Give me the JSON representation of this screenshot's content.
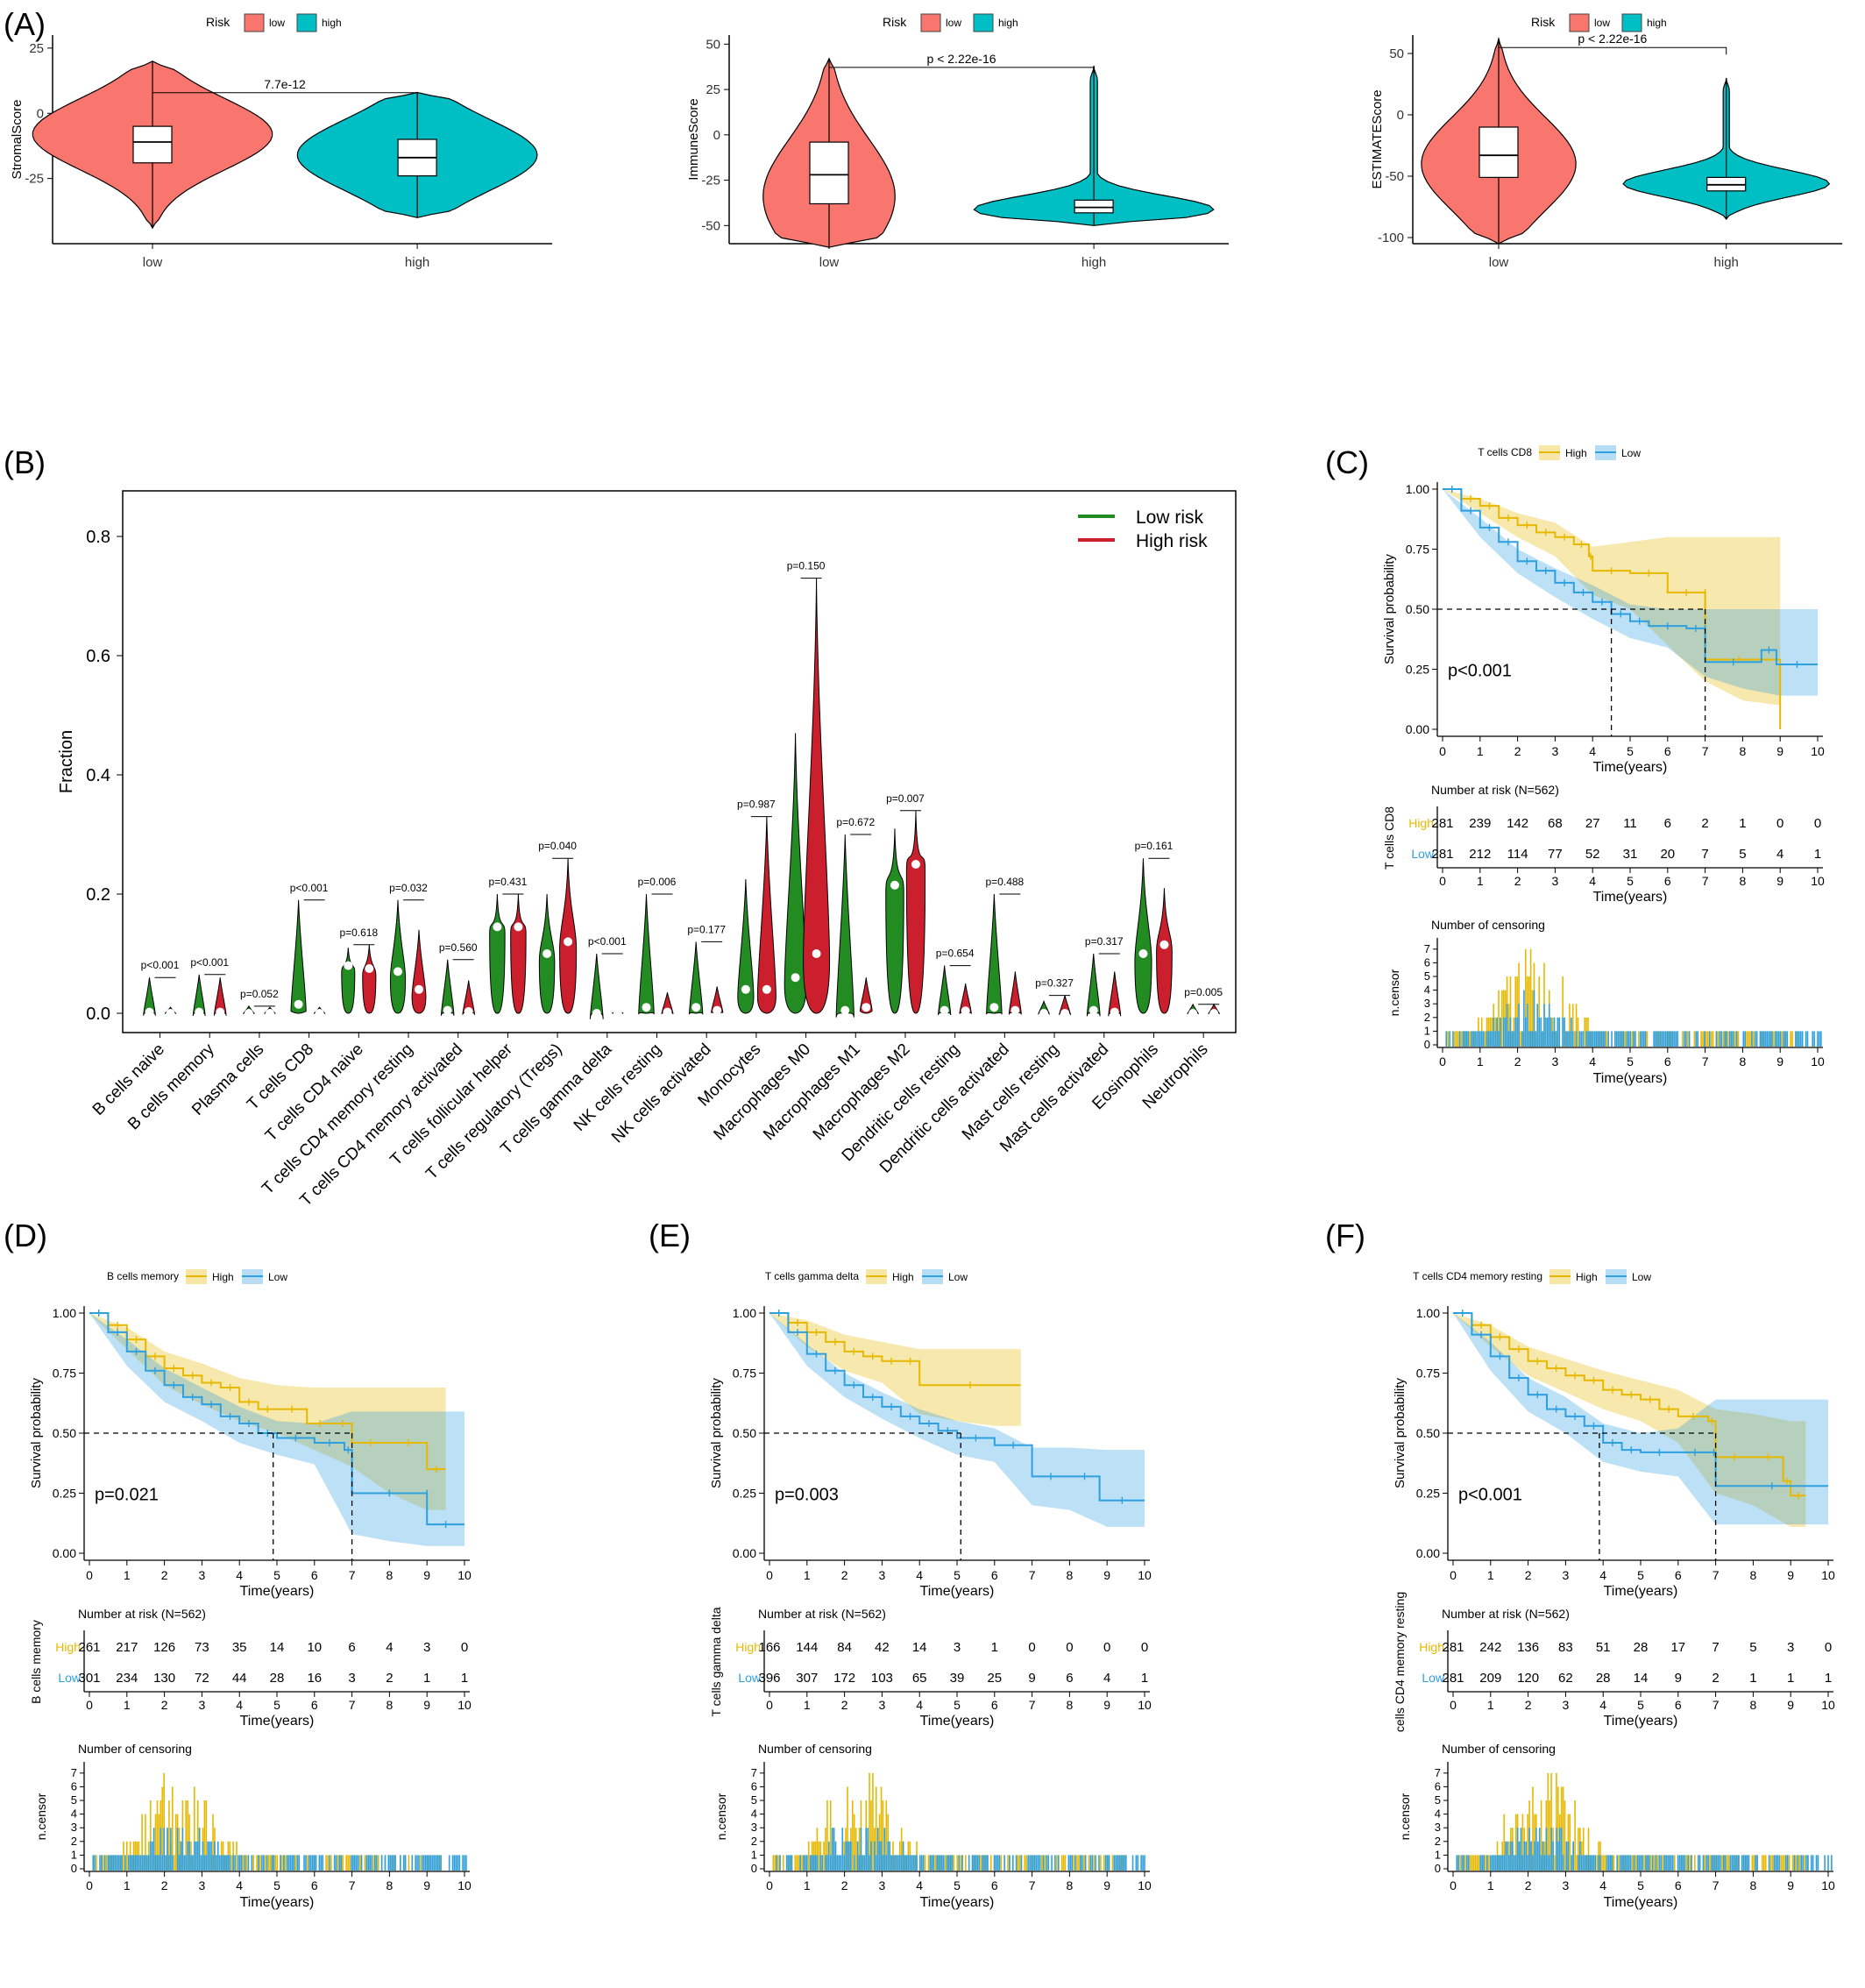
{
  "colors": {
    "low_violin": "#F8766D",
    "high_violin": "#00BFC4",
    "green": "#228B22",
    "red": "#CC1F2D",
    "ks_high": "#E7B800",
    "ks_low": "#2E9FDF"
  },
  "panelA": {
    "label": "(A)",
    "legend_title": "Risk",
    "legend_low": "low",
    "legend_high": "high",
    "charts": [
      {
        "type": "violin",
        "ylabel": "StromalScore",
        "categories": [
          "low",
          "high"
        ],
        "ylim": [
          -50,
          30
        ],
        "yticks": [
          25,
          0,
          -25
        ],
        "pvalue": "7.7e-12",
        "groups": [
          {
            "name": "low",
            "min": -44,
            "q1": -19,
            "median": -11,
            "q3": -5,
            "max": 20,
            "mode": -8,
            "maxdens": 1
          },
          {
            "name": "high",
            "min": -40,
            "q1": -24,
            "median": -17,
            "q3": -10,
            "max": 8,
            "mode": -16,
            "maxdens": 1
          }
        ]
      },
      {
        "type": "violin",
        "ylabel": "ImmuneScore",
        "categories": [
          "low",
          "high"
        ],
        "ylim": [
          -60,
          55
        ],
        "yticks": [
          50,
          25,
          0,
          -25,
          -50
        ],
        "pvalue": "p < 2.22e-16",
        "groups": [
          {
            "name": "low",
            "min": -62,
            "q1": -38,
            "median": -22,
            "q3": -4,
            "max": 42,
            "mode": -34,
            "maxdens": 0.55
          },
          {
            "name": "high",
            "min": -50,
            "q1": -43,
            "median": -40,
            "q3": -36,
            "max": 38,
            "mode": -41,
            "maxdens": 1
          }
        ]
      },
      {
        "type": "violin",
        "ylabel": "ESTIMATEScore",
        "categories": [
          "low",
          "high"
        ],
        "ylim": [
          -105,
          65
        ],
        "yticks": [
          50,
          0,
          -50,
          -100
        ],
        "pvalue": "p < 2.22e-16",
        "groups": [
          {
            "name": "low",
            "min": -105,
            "q1": -51,
            "median": -33,
            "q3": -10,
            "max": 62,
            "mode": -40,
            "maxdens": 0.75
          },
          {
            "name": "high",
            "min": -85,
            "q1": -62,
            "median": -57,
            "q3": -51,
            "max": 30,
            "mode": -56,
            "maxdens": 1
          }
        ]
      }
    ]
  },
  "panelB": {
    "label": "(B)",
    "chart_data": {
      "type": "violin",
      "ylabel": "Fraction",
      "ylim": [
        0,
        0.85
      ],
      "yticks": [
        0.0,
        0.2,
        0.4,
        0.6,
        0.8
      ],
      "legend": [
        "Low risk",
        "High risk"
      ],
      "categories": [
        "B cells naive",
        "B cells memory",
        "Plasma cells",
        "T cells CD8",
        "T cells CD4 naive",
        "T cells CD4 memory resting",
        "T cells CD4 memory activated",
        "T cells follicular helper",
        "T cells regulatory (Tregs)",
        "T cells gamma delta",
        "NK cells resting",
        "NK cells activated",
        "Monocytes",
        "Macrophages M0",
        "Macrophages M1",
        "Macrophages M2",
        "Dendritic cells resting",
        "Dendritic cells activated",
        "Mast cells resting",
        "Mast cells activated",
        "Eosinophils",
        "Neutrophils"
      ],
      "pvalues": [
        "p<0.001",
        "p<0.001",
        "p=0.052",
        "p<0.001",
        "p=0.618",
        "p=0.032",
        "p=0.560",
        "p=0.431",
        "p=0.040",
        "p<0.001",
        "p=0.006",
        "p=0.177",
        "p=0.987",
        "p=0.150",
        "p=0.672",
        "p=0.007",
        "p=0.654",
        "p=0.488",
        "p=0.327",
        "p=0.317",
        "p=0.161",
        "p=0.005"
      ],
      "low_max": [
        0.06,
        0.065,
        0.012,
        0.19,
        0.11,
        0.19,
        0.09,
        0.2,
        0.2,
        0.1,
        0.2,
        0.12,
        0.225,
        0.47,
        0.3,
        0.31,
        0.08,
        0.2,
        0.02,
        0.1,
        0.26,
        0.015
      ],
      "low_median": [
        0.002,
        0.002,
        0.0,
        0.015,
        0.08,
        0.07,
        0.005,
        0.145,
        0.1,
        0.0,
        0.01,
        0.01,
        0.04,
        0.06,
        0.005,
        0.215,
        0.005,
        0.01,
        0.0,
        0.005,
        0.1,
        0.0
      ],
      "high_max": [
        0.01,
        0.06,
        0.01,
        0.01,
        0.115,
        0.14,
        0.055,
        0.2,
        0.26,
        0.005,
        0.035,
        0.045,
        0.33,
        0.73,
        0.06,
        0.34,
        0.05,
        0.07,
        0.03,
        0.07,
        0.21,
        0.015
      ],
      "high_median": [
        0.0,
        0.002,
        0.0,
        0.0,
        0.075,
        0.04,
        0.003,
        0.145,
        0.12,
        0.0,
        0.002,
        0.005,
        0.04,
        0.1,
        0.01,
        0.25,
        0.004,
        0.005,
        0.0,
        0.002,
        0.115,
        0.0
      ]
    }
  },
  "km_common": {
    "ylabel": "Survival probability",
    "xlabel": "Time(years)",
    "legend_high": "High",
    "legend_low": "Low",
    "risk_title": "Number at risk (N=562)",
    "censor_title": "Number of censoring",
    "censor_ylabel": "n.censor",
    "xticks": [
      0,
      1,
      2,
      3,
      4,
      5,
      6,
      7,
      8,
      9,
      10
    ],
    "yticks": [
      "1.00",
      "0.75",
      "0.50",
      "0.25",
      "0.00"
    ]
  },
  "panelC": {
    "label": "(C)",
    "strata": "T cells CD8",
    "pvalue": "p<0.001",
    "risk_high": [
      281,
      239,
      142,
      68,
      27,
      11,
      6,
      2,
      1,
      0,
      0
    ],
    "risk_low": [
      281,
      212,
      114,
      77,
      52,
      31,
      20,
      7,
      5,
      4,
      1
    ],
    "high_steps": [
      [
        0,
        1
      ],
      [
        0.5,
        0.96
      ],
      [
        1,
        0.93
      ],
      [
        1.5,
        0.88
      ],
      [
        2,
        0.85
      ],
      [
        2.5,
        0.82
      ],
      [
        3,
        0.8
      ],
      [
        3.5,
        0.77
      ],
      [
        3.9,
        0.72
      ],
      [
        4,
        0.66
      ],
      [
        5,
        0.65
      ],
      [
        6,
        0.57
      ],
      [
        7,
        0.57
      ],
      [
        7,
        0.29
      ],
      [
        8.8,
        0.29
      ],
      [
        9,
        0
      ]
    ],
    "low_steps": [
      [
        0,
        1
      ],
      [
        0.5,
        0.91
      ],
      [
        1,
        0.84
      ],
      [
        1.5,
        0.78
      ],
      [
        2,
        0.7
      ],
      [
        2.5,
        0.66
      ],
      [
        3,
        0.61
      ],
      [
        3.5,
        0.57
      ],
      [
        4,
        0.53
      ],
      [
        4.5,
        0.48
      ],
      [
        5,
        0.45
      ],
      [
        5.5,
        0.43
      ],
      [
        6.5,
        0.42
      ],
      [
        7,
        0.42
      ],
      [
        7,
        0.28
      ],
      [
        8.5,
        0.33
      ],
      [
        8.9,
        0.27
      ],
      [
        10,
        0.27
      ]
    ],
    "high_ci": [
      [
        0,
        1,
        1
      ],
      [
        1,
        0.96,
        0.9
      ],
      [
        2,
        0.9,
        0.8
      ],
      [
        3,
        0.86,
        0.72
      ],
      [
        4,
        0.76,
        0.56
      ],
      [
        5,
        0.78,
        0.5
      ],
      [
        6,
        0.8,
        0.35
      ],
      [
        7,
        0.8,
        0.2
      ],
      [
        8,
        0.8,
        0.12
      ],
      [
        9,
        0.8,
        0.1
      ]
    ],
    "low_ci": [
      [
        0,
        1,
        1
      ],
      [
        1,
        0.88,
        0.8
      ],
      [
        2,
        0.75,
        0.65
      ],
      [
        3,
        0.67,
        0.55
      ],
      [
        4,
        0.6,
        0.46
      ],
      [
        5,
        0.52,
        0.38
      ],
      [
        6,
        0.5,
        0.34
      ],
      [
        7,
        0.5,
        0.22
      ],
      [
        8,
        0.5,
        0.17
      ],
      [
        9,
        0.5,
        0.14
      ],
      [
        10,
        0.5,
        0.14
      ]
    ],
    "median_high": 7,
    "median_low": 4.5
  },
  "panelD": {
    "label": "(D)",
    "strata": "B cells memory",
    "pvalue": "p=0.021",
    "risk_high": [
      261,
      217,
      126,
      73,
      35,
      14,
      10,
      6,
      4,
      3,
      0
    ],
    "risk_low": [
      301,
      234,
      130,
      72,
      44,
      28,
      16,
      3,
      2,
      1,
      1
    ],
    "high_steps": [
      [
        0,
        1
      ],
      [
        0.5,
        0.95
      ],
      [
        1,
        0.89
      ],
      [
        1.5,
        0.82
      ],
      [
        2,
        0.77
      ],
      [
        2.5,
        0.74
      ],
      [
        3,
        0.71
      ],
      [
        3.5,
        0.69
      ],
      [
        4,
        0.63
      ],
      [
        4.5,
        0.6
      ],
      [
        5,
        0.6
      ],
      [
        5.8,
        0.54
      ],
      [
        6.5,
        0.54
      ],
      [
        7,
        0.46
      ],
      [
        8,
        0.46
      ],
      [
        9,
        0.35
      ],
      [
        9.5,
        0.35
      ]
    ],
    "low_steps": [
      [
        0,
        1
      ],
      [
        0.5,
        0.92
      ],
      [
        1,
        0.84
      ],
      [
        1.5,
        0.76
      ],
      [
        2,
        0.7
      ],
      [
        2.5,
        0.65
      ],
      [
        3,
        0.62
      ],
      [
        3.5,
        0.57
      ],
      [
        4,
        0.54
      ],
      [
        4.5,
        0.5
      ],
      [
        5,
        0.48
      ],
      [
        6,
        0.46
      ],
      [
        6.8,
        0.43
      ],
      [
        7,
        0.25
      ],
      [
        9,
        0.25
      ],
      [
        9,
        0.12
      ],
      [
        10,
        0.12
      ]
    ],
    "high_ci": [
      [
        0,
        1,
        1
      ],
      [
        1,
        0.94,
        0.85
      ],
      [
        2,
        0.84,
        0.7
      ],
      [
        3,
        0.79,
        0.62
      ],
      [
        4,
        0.73,
        0.55
      ],
      [
        5,
        0.7,
        0.5
      ],
      [
        6,
        0.69,
        0.43
      ],
      [
        7,
        0.69,
        0.36
      ],
      [
        8,
        0.69,
        0.25
      ],
      [
        9,
        0.69,
        0.18
      ],
      [
        9.5,
        0.69,
        0.18
      ]
    ],
    "low_ci": [
      [
        0,
        1,
        1
      ],
      [
        1,
        0.89,
        0.78
      ],
      [
        2,
        0.77,
        0.63
      ],
      [
        3,
        0.69,
        0.55
      ],
      [
        4,
        0.61,
        0.46
      ],
      [
        5,
        0.55,
        0.41
      ],
      [
        6,
        0.54,
        0.37
      ],
      [
        7,
        0.59,
        0.08
      ],
      [
        8,
        0.59,
        0.05
      ],
      [
        9,
        0.59,
        0.03
      ],
      [
        10,
        0.59,
        0.03
      ]
    ],
    "median_high": 7,
    "median_low": 4.9
  },
  "panelE": {
    "label": "(E)",
    "strata": "T cells gamma delta",
    "pvalue": "p=0.003",
    "risk_high": [
      166,
      144,
      84,
      42,
      14,
      3,
      1,
      0,
      0,
      0,
      0
    ],
    "risk_low": [
      396,
      307,
      172,
      103,
      65,
      39,
      25,
      9,
      6,
      4,
      1
    ],
    "high_steps": [
      [
        0,
        1
      ],
      [
        0.5,
        0.96
      ],
      [
        1,
        0.92
      ],
      [
        1.5,
        0.88
      ],
      [
        2,
        0.84
      ],
      [
        2.5,
        0.82
      ],
      [
        3,
        0.8
      ],
      [
        3.5,
        0.8
      ],
      [
        4,
        0.7
      ],
      [
        6.7,
        0.7
      ]
    ],
    "low_steps": [
      [
        0,
        1
      ],
      [
        0.5,
        0.92
      ],
      [
        1,
        0.83
      ],
      [
        1.5,
        0.76
      ],
      [
        2,
        0.7
      ],
      [
        2.5,
        0.65
      ],
      [
        3,
        0.61
      ],
      [
        3.5,
        0.57
      ],
      [
        4,
        0.54
      ],
      [
        4.5,
        0.51
      ],
      [
        5,
        0.48
      ],
      [
        6,
        0.45
      ],
      [
        7,
        0.32
      ],
      [
        8,
        0.32
      ],
      [
        8.8,
        0.22
      ],
      [
        10,
        0.22
      ]
    ],
    "high_ci": [
      [
        0,
        1,
        1
      ],
      [
        1,
        0.97,
        0.86
      ],
      [
        2,
        0.91,
        0.76
      ],
      [
        3,
        0.88,
        0.71
      ],
      [
        4,
        0.85,
        0.58
      ],
      [
        5,
        0.85,
        0.55
      ],
      [
        6,
        0.85,
        0.53
      ],
      [
        6.7,
        0.85,
        0.53
      ]
    ],
    "low_ci": [
      [
        0,
        1,
        1
      ],
      [
        1,
        0.87,
        0.78
      ],
      [
        2,
        0.75,
        0.65
      ],
      [
        3,
        0.67,
        0.56
      ],
      [
        4,
        0.6,
        0.48
      ],
      [
        5,
        0.55,
        0.41
      ],
      [
        6,
        0.52,
        0.38
      ],
      [
        7,
        0.44,
        0.2
      ],
      [
        8,
        0.44,
        0.18
      ],
      [
        9,
        0.43,
        0.11
      ],
      [
        10,
        0.43,
        0.11
      ]
    ],
    "median_low": 5.1
  },
  "panelF": {
    "label": "(F)",
    "strata": "T cells CD4 memory resting",
    "risk_ylabel": "cells CD4 memory resting",
    "pvalue": "p<0.001",
    "risk_high": [
      281,
      242,
      136,
      83,
      51,
      28,
      17,
      7,
      5,
      3,
      0
    ],
    "risk_low": [
      281,
      209,
      120,
      62,
      28,
      14,
      9,
      2,
      1,
      1,
      1
    ],
    "high_steps": [
      [
        0,
        1
      ],
      [
        0.5,
        0.95
      ],
      [
        1,
        0.9
      ],
      [
        1.5,
        0.85
      ],
      [
        2,
        0.8
      ],
      [
        2.5,
        0.77
      ],
      [
        3,
        0.74
      ],
      [
        3.5,
        0.72
      ],
      [
        4,
        0.68
      ],
      [
        4.5,
        0.66
      ],
      [
        5,
        0.64
      ],
      [
        5.5,
        0.6
      ],
      [
        6,
        0.57
      ],
      [
        6.8,
        0.55
      ],
      [
        7,
        0.4
      ],
      [
        8,
        0.4
      ],
      [
        8.8,
        0.3
      ],
      [
        9,
        0.24
      ],
      [
        9.4,
        0.24
      ]
    ],
    "low_steps": [
      [
        0,
        1
      ],
      [
        0.5,
        0.91
      ],
      [
        1,
        0.82
      ],
      [
        1.5,
        0.73
      ],
      [
        2,
        0.66
      ],
      [
        2.5,
        0.6
      ],
      [
        3,
        0.57
      ],
      [
        3.5,
        0.53
      ],
      [
        4,
        0.46
      ],
      [
        4.5,
        0.43
      ],
      [
        5,
        0.42
      ],
      [
        6,
        0.42
      ],
      [
        6.9,
        0.42
      ],
      [
        7,
        0.28
      ],
      [
        10,
        0.28
      ]
    ],
    "high_ci": [
      [
        0,
        1,
        1
      ],
      [
        1,
        0.95,
        0.86
      ],
      [
        2,
        0.86,
        0.74
      ],
      [
        3,
        0.81,
        0.67
      ],
      [
        4,
        0.76,
        0.6
      ],
      [
        5,
        0.72,
        0.55
      ],
      [
        6,
        0.68,
        0.46
      ],
      [
        7,
        0.6,
        0.25
      ],
      [
        8,
        0.58,
        0.2
      ],
      [
        9,
        0.55,
        0.11
      ],
      [
        9.4,
        0.55,
        0.11
      ]
    ],
    "low_ci": [
      [
        0,
        1,
        1
      ],
      [
        1,
        0.88,
        0.76
      ],
      [
        2,
        0.73,
        0.59
      ],
      [
        3,
        0.65,
        0.5
      ],
      [
        4,
        0.54,
        0.38
      ],
      [
        5,
        0.5,
        0.34
      ],
      [
        6,
        0.52,
        0.32
      ],
      [
        7,
        0.64,
        0.12
      ],
      [
        8,
        0.64,
        0.12
      ],
      [
        9,
        0.64,
        0.12
      ],
      [
        10,
        0.64,
        0.12
      ]
    ],
    "median_high": 7,
    "median_low": 3.9
  }
}
